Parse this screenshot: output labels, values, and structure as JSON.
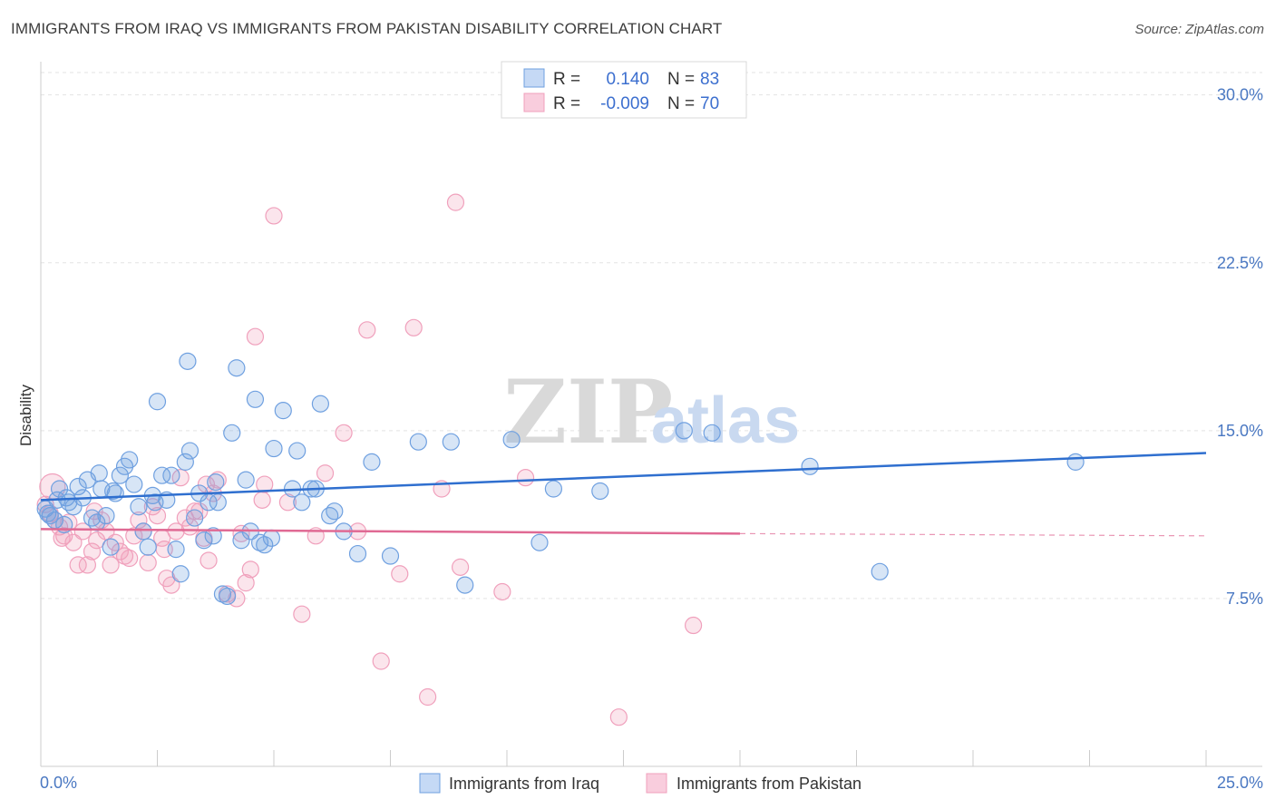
{
  "header": {
    "title": "IMMIGRANTS FROM IRAQ VS IMMIGRANTS FROM PAKISTAN DISABILITY CORRELATION CHART",
    "source": "Source: ZipAtlas.com"
  },
  "watermark": {
    "zip": "ZIP",
    "atlas": "atlas"
  },
  "legend": {
    "rows": [
      {
        "r_label": "R = ",
        "r_value": "0.140",
        "n_label": "N = ",
        "n_value": "83"
      },
      {
        "r_label": "R = ",
        "r_value": "-0.009",
        "n_label": "N = ",
        "n_value": "70"
      }
    ]
  },
  "chart_data": {
    "type": "scatter",
    "title": "IMMIGRANTS FROM IRAQ VS IMMIGRANTS FROM PAKISTAN DISABILITY CORRELATION CHART",
    "xlabel": "",
    "ylabel": "Disability",
    "xlim": [
      0,
      25
    ],
    "ylim": [
      0,
      31
    ],
    "x_tick_labels": [
      "0.0%",
      "25.0%"
    ],
    "y_ticks": [
      7.5,
      15.0,
      22.5,
      30.0
    ],
    "y_tick_labels": [
      "7.5%",
      "15.0%",
      "22.5%",
      "30.0%"
    ],
    "grid": true,
    "legend_position": "top-center",
    "colors": {
      "iraq": "#6fa0e0",
      "iraq_line": "#2f6fcf",
      "pakistan": "#f0a0bc",
      "pakistan_line": "#e06a94"
    },
    "series": [
      {
        "name": "Immigrants from Iraq",
        "r": 0.14,
        "n": 83,
        "trend": {
          "x": [
            0,
            25
          ],
          "y": [
            11.9,
            14.0
          ]
        },
        "points": [
          [
            0.1,
            11.5
          ],
          [
            0.2,
            11.2
          ],
          [
            0.3,
            11.0
          ],
          [
            0.4,
            12.4
          ],
          [
            0.5,
            10.8
          ],
          [
            0.6,
            11.8
          ],
          [
            0.7,
            11.6
          ],
          [
            0.8,
            12.5
          ],
          [
            0.9,
            12.0
          ],
          [
            1.0,
            12.8
          ],
          [
            1.1,
            11.1
          ],
          [
            1.2,
            10.9
          ],
          [
            1.3,
            12.4
          ],
          [
            1.4,
            11.2
          ],
          [
            1.5,
            9.8
          ],
          [
            1.6,
            12.2
          ],
          [
            1.7,
            13.0
          ],
          [
            1.8,
            13.4
          ],
          [
            1.9,
            13.7
          ],
          [
            2.0,
            12.6
          ],
          [
            2.1,
            11.6
          ],
          [
            2.2,
            10.5
          ],
          [
            2.3,
            9.8
          ],
          [
            2.4,
            12.1
          ],
          [
            2.5,
            16.3
          ],
          [
            2.6,
            13.0
          ],
          [
            2.7,
            11.9
          ],
          [
            2.8,
            13.0
          ],
          [
            2.9,
            9.7
          ],
          [
            3.0,
            8.6
          ],
          [
            3.1,
            13.6
          ],
          [
            3.2,
            14.1
          ],
          [
            3.3,
            11.1
          ],
          [
            3.4,
            12.2
          ],
          [
            3.5,
            10.1
          ],
          [
            3.6,
            11.8
          ],
          [
            3.7,
            10.3
          ],
          [
            3.8,
            11.8
          ],
          [
            3.9,
            7.7
          ],
          [
            4.0,
            7.6
          ],
          [
            4.1,
            14.9
          ],
          [
            4.2,
            17.8
          ],
          [
            4.3,
            10.1
          ],
          [
            4.4,
            12.8
          ],
          [
            4.5,
            10.5
          ],
          [
            4.6,
            16.4
          ],
          [
            4.7,
            10.0
          ],
          [
            4.8,
            9.9
          ],
          [
            5.0,
            14.2
          ],
          [
            5.2,
            15.9
          ],
          [
            5.4,
            12.4
          ],
          [
            5.5,
            14.1
          ],
          [
            5.6,
            11.8
          ],
          [
            5.8,
            12.4
          ],
          [
            6.0,
            16.2
          ],
          [
            6.3,
            11.4
          ],
          [
            6.5,
            10.5
          ],
          [
            6.8,
            9.5
          ],
          [
            7.1,
            13.6
          ],
          [
            7.5,
            9.4
          ],
          [
            8.1,
            14.5
          ],
          [
            8.8,
            14.5
          ],
          [
            9.1,
            8.1
          ],
          [
            10.1,
            14.6
          ],
          [
            10.7,
            10.0
          ],
          [
            11.0,
            12.4
          ],
          [
            12.0,
            12.3
          ],
          [
            13.8,
            15.0
          ],
          [
            14.4,
            14.9
          ],
          [
            16.5,
            13.4
          ],
          [
            18.0,
            8.7
          ],
          [
            22.2,
            13.6
          ],
          [
            0.15,
            11.3
          ],
          [
            0.35,
            11.9
          ],
          [
            0.55,
            12.0
          ],
          [
            1.25,
            13.1
          ],
          [
            2.45,
            11.8
          ],
          [
            3.15,
            18.1
          ],
          [
            4.95,
            10.2
          ],
          [
            5.9,
            12.4
          ],
          [
            6.2,
            11.2
          ],
          [
            3.75,
            12.7
          ],
          [
            1.55,
            12.3
          ]
        ]
      },
      {
        "name": "Immigrants from Pakistan",
        "r": -0.009,
        "n": 70,
        "trend": {
          "x": [
            0,
            15
          ],
          "y": [
            10.6,
            10.4
          ],
          "dashed_to": {
            "x": 25,
            "y": 10.3
          }
        },
        "points": [
          [
            0.1,
            11.7
          ],
          [
            0.2,
            11.3
          ],
          [
            0.3,
            11.0
          ],
          [
            0.4,
            10.7
          ],
          [
            0.5,
            10.3
          ],
          [
            0.6,
            10.9
          ],
          [
            0.7,
            10.0
          ],
          [
            0.8,
            9.0
          ],
          [
            0.9,
            10.5
          ],
          [
            1.0,
            9.0
          ],
          [
            1.1,
            9.6
          ],
          [
            1.2,
            10.1
          ],
          [
            1.3,
            11.0
          ],
          [
            1.4,
            10.5
          ],
          [
            1.5,
            9.0
          ],
          [
            1.6,
            10.0
          ],
          [
            1.7,
            9.6
          ],
          [
            1.8,
            9.4
          ],
          [
            1.9,
            9.3
          ],
          [
            2.0,
            10.3
          ],
          [
            2.1,
            11.0
          ],
          [
            2.2,
            10.5
          ],
          [
            2.3,
            9.1
          ],
          [
            2.4,
            11.6
          ],
          [
            2.5,
            11.2
          ],
          [
            2.6,
            10.2
          ],
          [
            2.7,
            8.4
          ],
          [
            2.8,
            8.1
          ],
          [
            2.9,
            10.5
          ],
          [
            3.0,
            12.9
          ],
          [
            3.1,
            11.1
          ],
          [
            3.2,
            10.7
          ],
          [
            3.3,
            11.4
          ],
          [
            3.4,
            11.4
          ],
          [
            3.5,
            10.2
          ],
          [
            3.6,
            9.2
          ],
          [
            3.7,
            12.2
          ],
          [
            3.8,
            12.8
          ],
          [
            4.0,
            7.7
          ],
          [
            4.2,
            7.5
          ],
          [
            4.3,
            10.4
          ],
          [
            4.4,
            8.2
          ],
          [
            4.5,
            8.8
          ],
          [
            4.6,
            19.2
          ],
          [
            4.8,
            12.6
          ],
          [
            5.0,
            24.6
          ],
          [
            5.3,
            11.8
          ],
          [
            5.6,
            6.8
          ],
          [
            5.9,
            10.3
          ],
          [
            6.1,
            13.1
          ],
          [
            6.5,
            14.9
          ],
          [
            6.8,
            10.5
          ],
          [
            7.0,
            19.5
          ],
          [
            7.3,
            4.7
          ],
          [
            7.7,
            8.6
          ],
          [
            8.0,
            19.6
          ],
          [
            8.3,
            3.1
          ],
          [
            8.6,
            12.4
          ],
          [
            8.9,
            25.2
          ],
          [
            9.0,
            8.9
          ],
          [
            9.9,
            7.8
          ],
          [
            10.4,
            12.9
          ],
          [
            12.4,
            2.2
          ],
          [
            14.0,
            6.3
          ],
          [
            0.25,
            12.5
          ],
          [
            0.45,
            10.2
          ],
          [
            1.15,
            11.4
          ],
          [
            2.65,
            9.7
          ],
          [
            3.55,
            12.6
          ],
          [
            4.75,
            11.9
          ]
        ]
      }
    ]
  },
  "bottom_legend": {
    "items": [
      {
        "label": "Immigrants from Iraq"
      },
      {
        "label": "Immigrants from Pakistan"
      }
    ]
  }
}
